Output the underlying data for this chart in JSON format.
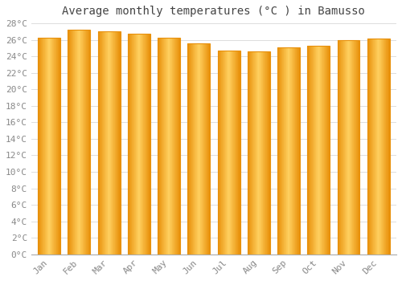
{
  "title": "Average monthly temperatures (°C ) in Bamusso",
  "months": [
    "Jan",
    "Feb",
    "Mar",
    "Apr",
    "May",
    "Jun",
    "Jul",
    "Aug",
    "Sep",
    "Oct",
    "Nov",
    "Dec"
  ],
  "values": [
    26.3,
    27.2,
    27.0,
    26.7,
    26.3,
    25.6,
    24.7,
    24.6,
    25.1,
    25.3,
    26.0,
    26.2
  ],
  "bar_edge_color": "#E8900A",
  "bar_center_color": "#FFD060",
  "bar_side_color": "#F5A800",
  "ylim": [
    0,
    28
  ],
  "ytick_step": 2,
  "background_color": "#FFFFFF",
  "grid_color": "#DDDDDD",
  "title_fontsize": 10,
  "tick_fontsize": 8,
  "tick_font_color": "#888888",
  "title_color": "#444444"
}
